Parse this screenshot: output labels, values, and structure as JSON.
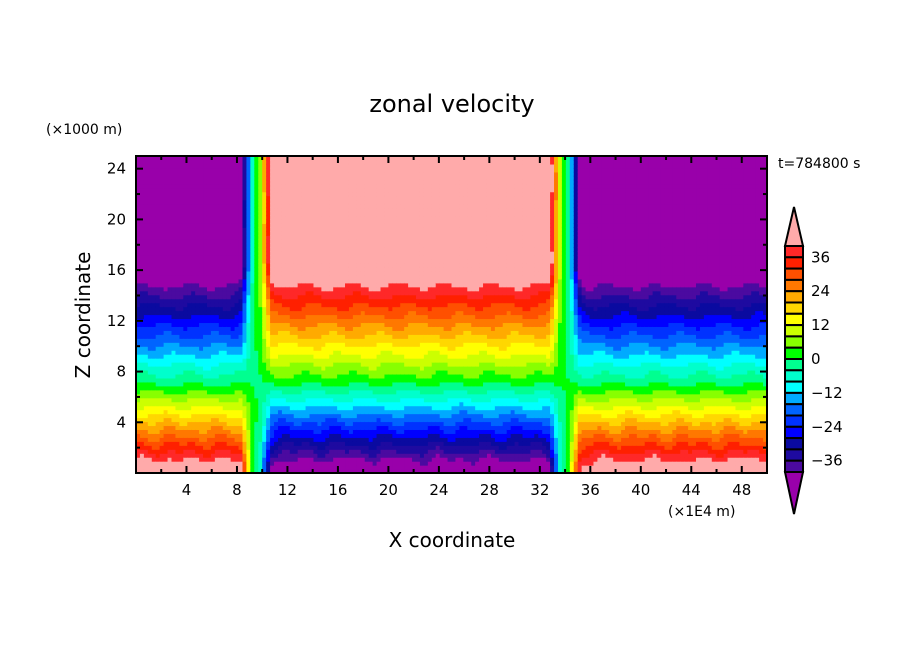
{
  "chart_data": {
    "type": "heatmap",
    "title": "zonal velocity",
    "xlabel": "X coordinate",
    "ylabel": "Z coordinate",
    "x_units": "(×1E4 m)",
    "y_units": "(×1000 m)",
    "time_label": "t=784800 s",
    "xlim": [
      0,
      50
    ],
    "ylim": [
      0,
      25
    ],
    "x_ticks": [
      4,
      8,
      12,
      16,
      20,
      24,
      28,
      32,
      36,
      40,
      44,
      48
    ],
    "x_tick_labels": [
      "4",
      "8",
      "12",
      "16",
      "20",
      "24",
      "28",
      "32",
      "36",
      "40",
      "44",
      "48"
    ],
    "y_ticks": [
      4,
      8,
      12,
      16,
      20,
      24
    ],
    "y_tick_labels": [
      "4",
      "8",
      "12",
      "16",
      "20",
      "24"
    ],
    "colorbar": {
      "levels": [
        -40,
        -36,
        -32,
        -28,
        -24,
        -20,
        -16,
        -12,
        -8,
        -4,
        0,
        4,
        8,
        12,
        16,
        20,
        24,
        28,
        32,
        36,
        40
      ],
      "tick_values": [
        36,
        24,
        12,
        0,
        -12,
        -24,
        -36
      ],
      "tick_labels": [
        "36",
        "24",
        "12",
        "0",
        "−12",
        "−24",
        "−36"
      ],
      "colors": [
        "#9900aa",
        "#4b0aa0",
        "#1e0aa0",
        "#0a0aa0",
        "#0000ff",
        "#0032ff",
        "#0064ff",
        "#00aaff",
        "#00ffff",
        "#00ffcc",
        "#00ff90",
        "#00ff00",
        "#88ff00",
        "#ccff00",
        "#ffff00",
        "#ffd700",
        "#ffaa00",
        "#ff7800",
        "#ff5000",
        "#ff2000",
        "#ff2828",
        "#ffaaaa"
      ],
      "extend": "both"
    },
    "description_fields": {
      "westerly_jet_x_range": [
        9.5,
        34
      ],
      "easterly_regions": [
        "x<9",
        "x>35"
      ],
      "sign_reversal_height": 7
    }
  }
}
